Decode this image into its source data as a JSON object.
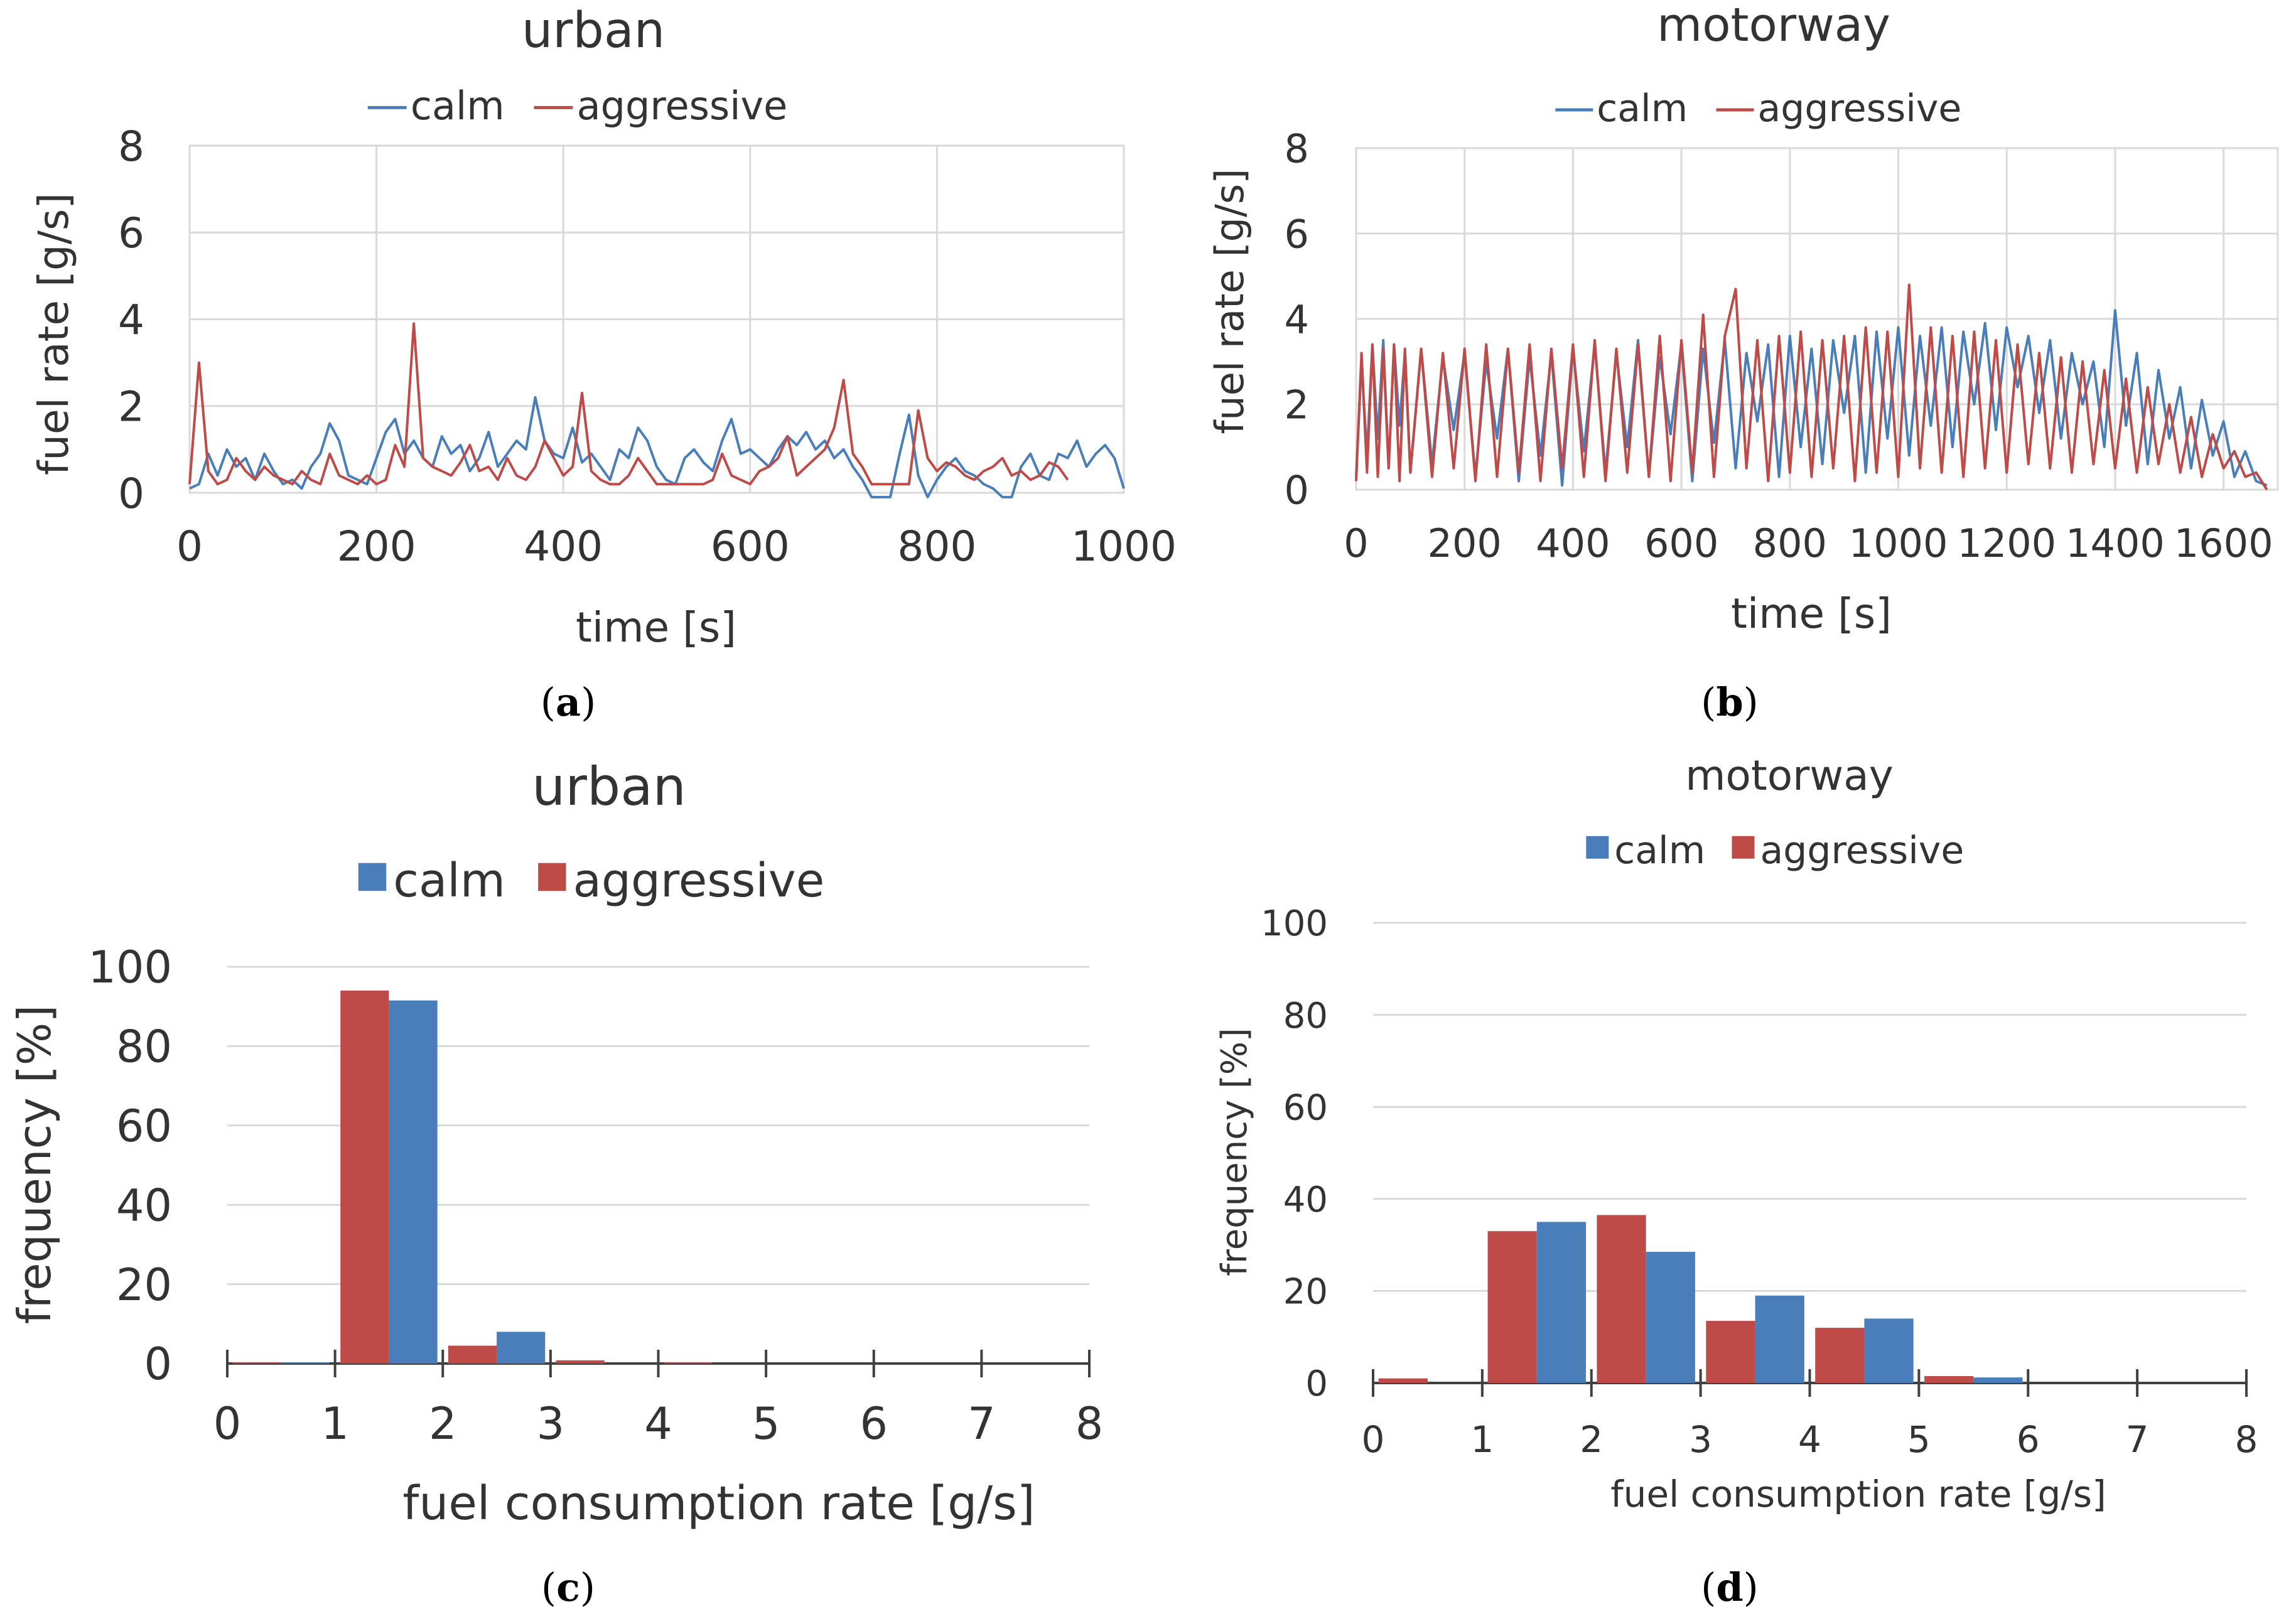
{
  "colors": {
    "calm": "#4a7ebb",
    "aggressive": "#be4b48",
    "grid": "#d9d9d9",
    "axis": "#808080",
    "text": "#333333"
  },
  "chart_data": [
    {
      "panel": "a",
      "panel_label": "a",
      "type": "line",
      "title": "urban",
      "xlabel": "time [s]",
      "ylabel": "fuel rate [g/s]",
      "xlim": [
        0,
        1000
      ],
      "ylim": [
        0,
        8
      ],
      "xticks": [
        0,
        200,
        400,
        600,
        800,
        1000
      ],
      "yticks": [
        0,
        2,
        4,
        6,
        8
      ],
      "legend": "top-center",
      "series": [
        {
          "name": "calm",
          "color": "#4a7ebb",
          "x": [
            0,
            10,
            20,
            30,
            40,
            50,
            60,
            70,
            80,
            90,
            100,
            110,
            120,
            130,
            140,
            150,
            160,
            170,
            180,
            190,
            200,
            210,
            220,
            230,
            240,
            250,
            260,
            270,
            280,
            290,
            300,
            310,
            320,
            330,
            340,
            350,
            360,
            370,
            380,
            390,
            400,
            410,
            420,
            430,
            440,
            450,
            460,
            470,
            480,
            490,
            500,
            510,
            520,
            530,
            540,
            550,
            560,
            570,
            580,
            590,
            600,
            610,
            620,
            630,
            640,
            650,
            660,
            670,
            680,
            690,
            700,
            710,
            720,
            730,
            740,
            750,
            760,
            770,
            780,
            790,
            800,
            810,
            820,
            830,
            840,
            850,
            860,
            870,
            880,
            890,
            900,
            910,
            920,
            930,
            940,
            950,
            960,
            970,
            980,
            990,
            1000
          ],
          "y": [
            0.1,
            0.2,
            0.9,
            0.4,
            1.0,
            0.6,
            0.8,
            0.3,
            0.9,
            0.5,
            0.2,
            0.3,
            0.1,
            0.6,
            0.9,
            1.6,
            1.2,
            0.4,
            0.3,
            0.2,
            0.8,
            1.4,
            1.7,
            0.9,
            1.2,
            0.8,
            0.6,
            1.3,
            0.9,
            1.1,
            0.5,
            0.8,
            1.4,
            0.6,
            0.9,
            1.2,
            1.0,
            2.2,
            1.2,
            0.9,
            0.8,
            1.5,
            0.7,
            0.9,
            0.6,
            0.3,
            1.0,
            0.8,
            1.5,
            1.2,
            0.6,
            0.3,
            0.2,
            0.8,
            1.0,
            0.7,
            0.5,
            1.2,
            1.7,
            0.9,
            1.0,
            0.8,
            0.6,
            1.0,
            1.3,
            1.1,
            1.4,
            1.0,
            1.2,
            0.8,
            1.0,
            0.6,
            0.3,
            -0.1,
            -0.1,
            -0.1,
            0.9,
            1.8,
            0.4,
            -0.1,
            0.3,
            0.6,
            0.8,
            0.5,
            0.4,
            0.2,
            0.1,
            -0.1,
            -0.1,
            0.6,
            0.9,
            0.4,
            0.3,
            0.9,
            0.8,
            1.2,
            0.6,
            0.9,
            1.1,
            0.8,
            0.1
          ]
        },
        {
          "name": "aggressive",
          "color": "#be4b48",
          "x": [
            0,
            10,
            20,
            30,
            40,
            50,
            60,
            70,
            80,
            90,
            100,
            110,
            120,
            130,
            140,
            150,
            160,
            170,
            180,
            190,
            200,
            210,
            220,
            230,
            240,
            250,
            260,
            270,
            280,
            290,
            300,
            310,
            320,
            330,
            340,
            350,
            360,
            370,
            380,
            390,
            400,
            410,
            420,
            430,
            440,
            450,
            460,
            470,
            480,
            490,
            500,
            510,
            520,
            530,
            540,
            550,
            560,
            570,
            580,
            590,
            600,
            610,
            620,
            630,
            640,
            650,
            660,
            670,
            680,
            690,
            700,
            710,
            720,
            730,
            740,
            750,
            760,
            770,
            780,
            790,
            800,
            810,
            820,
            830,
            840,
            850,
            860,
            870,
            880,
            890,
            900,
            910,
            920,
            930,
            940
          ],
          "y": [
            0.2,
            3.0,
            0.5,
            0.2,
            0.3,
            0.8,
            0.5,
            0.3,
            0.6,
            0.4,
            0.3,
            0.2,
            0.5,
            0.3,
            0.2,
            0.9,
            0.4,
            0.3,
            0.2,
            0.4,
            0.2,
            0.3,
            1.1,
            0.6,
            3.9,
            0.8,
            0.6,
            0.5,
            0.4,
            0.7,
            1.1,
            0.5,
            0.6,
            0.3,
            0.8,
            0.4,
            0.3,
            0.6,
            1.2,
            0.8,
            0.4,
            0.6,
            2.3,
            0.5,
            0.3,
            0.2,
            0.2,
            0.4,
            0.8,
            0.5,
            0.2,
            0.2,
            0.2,
            0.2,
            0.2,
            0.2,
            0.3,
            0.9,
            0.4,
            0.3,
            0.2,
            0.5,
            0.6,
            0.8,
            1.3,
            0.4,
            0.6,
            0.8,
            1.0,
            1.5,
            2.6,
            0.9,
            0.6,
            0.2,
            0.2,
            0.2,
            0.2,
            0.2,
            1.9,
            0.8,
            0.5,
            0.7,
            0.6,
            0.4,
            0.3,
            0.5,
            0.6,
            0.8,
            0.4,
            0.5,
            0.3,
            0.4,
            0.7,
            0.6,
            0.3
          ]
        }
      ]
    },
    {
      "panel": "b",
      "panel_label": "b",
      "type": "line",
      "title": "motorway",
      "xlabel": "time [s]",
      "ylabel": "fuel rate [g/s]",
      "xlim": [
        0,
        1700
      ],
      "ylim": [
        0,
        8
      ],
      "xticks": [
        0,
        200,
        400,
        600,
        800,
        1000,
        1200,
        1400,
        1600
      ],
      "yticks": [
        0,
        2,
        4,
        6,
        8
      ],
      "legend": "top-center",
      "series": [
        {
          "name": "calm",
          "color": "#4a7ebb",
          "x": [
            0,
            10,
            20,
            30,
            40,
            50,
            60,
            70,
            80,
            90,
            100,
            120,
            140,
            160,
            180,
            200,
            220,
            240,
            260,
            280,
            300,
            320,
            340,
            360,
            380,
            400,
            420,
            440,
            460,
            480,
            500,
            520,
            540,
            560,
            580,
            600,
            620,
            640,
            660,
            680,
            700,
            720,
            740,
            760,
            780,
            800,
            820,
            840,
            860,
            880,
            900,
            920,
            940,
            960,
            980,
            1000,
            1020,
            1040,
            1060,
            1080,
            1100,
            1120,
            1140,
            1160,
            1180,
            1200,
            1220,
            1240,
            1260,
            1280,
            1300,
            1320,
            1340,
            1360,
            1380,
            1400,
            1420,
            1440,
            1460,
            1480,
            1500,
            1520,
            1540,
            1560,
            1580,
            1600,
            1620,
            1640,
            1660,
            1680
          ],
          "y": [
            0.3,
            3.0,
            0.8,
            3.4,
            1.2,
            3.5,
            0.5,
            3.4,
            1.5,
            3.2,
            0.4,
            3.3,
            0.6,
            3.1,
            1.4,
            3.2,
            0.3,
            3.0,
            1.2,
            3.3,
            0.2,
            3.1,
            0.8,
            3.2,
            0.1,
            3.3,
            0.9,
            3.4,
            0.4,
            3.2,
            1.0,
            3.5,
            0.3,
            3.1,
            1.3,
            3.4,
            0.2,
            3.3,
            1.1,
            3.5,
            0.5,
            3.2,
            1.6,
            3.4,
            0.3,
            3.6,
            1.0,
            3.3,
            0.6,
            3.5,
            1.8,
            3.6,
            0.4,
            3.7,
            1.2,
            3.8,
            0.8,
            3.6,
            1.5,
            3.8,
            1.0,
            3.7,
            2.0,
            3.9,
            1.4,
            3.8,
            2.4,
            3.6,
            1.8,
            3.5,
            1.2,
            3.2,
            2.0,
            3.0,
            1.0,
            4.2,
            1.5,
            3.2,
            0.6,
            2.8,
            1.2,
            2.4,
            0.5,
            2.1,
            0.8,
            1.6,
            0.3,
            0.9,
            0.2,
            0.1
          ]
        },
        {
          "name": "aggressive",
          "color": "#be4b48",
          "x": [
            0,
            10,
            20,
            30,
            40,
            50,
            60,
            70,
            80,
            90,
            100,
            120,
            140,
            160,
            180,
            200,
            220,
            240,
            260,
            280,
            300,
            320,
            340,
            360,
            380,
            400,
            420,
            440,
            460,
            480,
            500,
            520,
            540,
            560,
            580,
            600,
            620,
            640,
            660,
            680,
            700,
            720,
            740,
            760,
            780,
            800,
            820,
            840,
            860,
            880,
            900,
            920,
            940,
            960,
            980,
            1000,
            1020,
            1040,
            1060,
            1080,
            1100,
            1120,
            1140,
            1160,
            1180,
            1200,
            1220,
            1240,
            1260,
            1280,
            1300,
            1320,
            1340,
            1360,
            1380,
            1400,
            1420,
            1440,
            1460,
            1480,
            1500,
            1520,
            1540,
            1560,
            1580,
            1600,
            1620,
            1640,
            1660,
            1680
          ],
          "y": [
            0.2,
            3.2,
            0.4,
            3.4,
            0.3,
            3.3,
            0.5,
            3.4,
            0.2,
            3.3,
            0.4,
            3.3,
            0.3,
            3.2,
            0.5,
            3.3,
            0.2,
            3.4,
            0.3,
            3.3,
            0.4,
            3.4,
            0.2,
            3.3,
            0.5,
            3.4,
            0.3,
            3.5,
            0.2,
            3.3,
            0.4,
            3.4,
            0.3,
            3.6,
            0.2,
            3.5,
            0.4,
            4.1,
            0.3,
            3.6,
            4.7,
            0.5,
            3.5,
            0.2,
            3.6,
            0.4,
            3.7,
            0.3,
            3.5,
            0.5,
            3.6,
            0.2,
            3.8,
            0.4,
            3.7,
            0.3,
            4.8,
            0.5,
            3.8,
            0.4,
            3.6,
            0.3,
            3.7,
            0.5,
            3.5,
            0.4,
            3.4,
            0.6,
            3.2,
            0.5,
            3.1,
            0.4,
            3.0,
            0.6,
            2.8,
            0.5,
            2.6,
            0.4,
            2.4,
            0.6,
            2.0,
            0.4,
            1.7,
            0.3,
            1.3,
            0.5,
            0.9,
            0.3,
            0.4,
            0.0
          ]
        }
      ]
    },
    {
      "panel": "c",
      "panel_label": "c",
      "type": "bar",
      "title": "urban",
      "xlabel": "fuel consumption rate [g/s]",
      "ylabel": "frequency [%]",
      "xlim": [
        0,
        8
      ],
      "ylim": [
        0,
        100
      ],
      "xticks": [
        0,
        1,
        2,
        3,
        4,
        5,
        6,
        7,
        8
      ],
      "yticks": [
        0,
        20,
        40,
        60,
        80,
        100
      ],
      "legend": "top-center",
      "bin_edges": [
        0,
        1,
        2,
        3,
        4,
        5,
        6,
        7,
        8
      ],
      "series": [
        {
          "name": "aggressive",
          "color": "#be4b48",
          "values": [
            0.3,
            94,
            4.5,
            0.8,
            0.3,
            0,
            0,
            0
          ]
        },
        {
          "name": "calm",
          "color": "#4a7ebb",
          "values": [
            0.3,
            91.5,
            8.0,
            0,
            0,
            0,
            0,
            0
          ]
        }
      ]
    },
    {
      "panel": "d",
      "panel_label": "d",
      "type": "bar",
      "title": "motorway",
      "xlabel": "fuel consumption rate [g/s]",
      "ylabel": "frequency [%]",
      "xlim": [
        0,
        8
      ],
      "ylim": [
        0,
        100
      ],
      "xticks": [
        0,
        1,
        2,
        3,
        4,
        5,
        6,
        7,
        8
      ],
      "yticks": [
        0,
        20,
        40,
        60,
        80,
        100
      ],
      "legend": "top-center",
      "bin_edges": [
        0,
        1,
        2,
        3,
        4,
        5,
        6,
        7,
        8
      ],
      "series": [
        {
          "name": "aggressive",
          "color": "#be4b48",
          "values": [
            1.0,
            33,
            36.5,
            13.5,
            12,
            1.5,
            0,
            0
          ]
        },
        {
          "name": "calm",
          "color": "#4a7ebb",
          "values": [
            0,
            35,
            28.5,
            19,
            14,
            1.2,
            0,
            0
          ]
        }
      ]
    }
  ]
}
